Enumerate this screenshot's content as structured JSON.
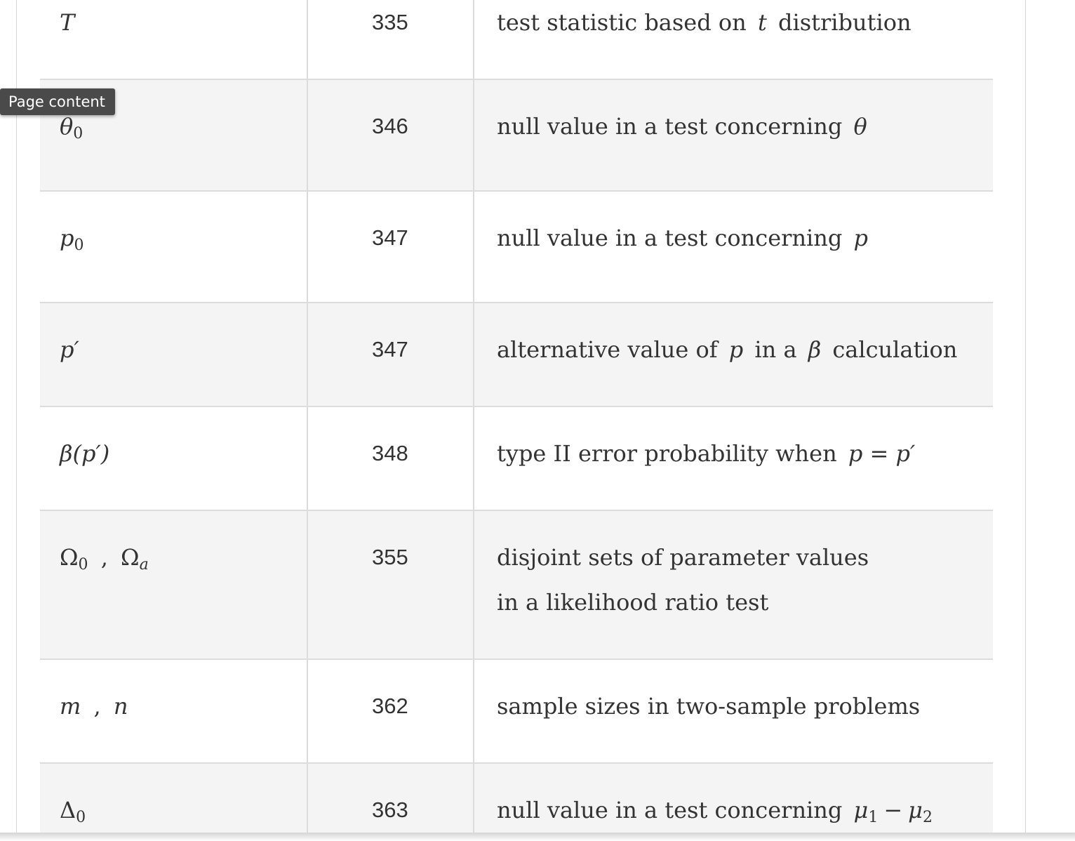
{
  "tooltip": "Page content",
  "rows": [
    {
      "symbol": "T",
      "page": "335",
      "description": [
        "test statistic based on",
        "t",
        "distribution"
      ]
    },
    {
      "symbol": "θ",
      "symbol_sub": "0",
      "page": "346",
      "description": [
        "null value in a test concerning",
        "θ",
        ""
      ]
    },
    {
      "symbol": "p",
      "symbol_sub": "0",
      "page": "347",
      "description": [
        "null value in a test concerning",
        "p",
        ""
      ]
    },
    {
      "symbol": "p′",
      "page": "347",
      "description": [
        "alternative value of",
        "p",
        "in a",
        "β",
        "calculation"
      ]
    },
    {
      "symbol": "β(p′)",
      "page": "348",
      "description": [
        "type II error probability when",
        "p = p′",
        ""
      ]
    },
    {
      "symbol": "Ω",
      "symbol_sub": "0",
      "symbol_sep": ",",
      "symbol2": "Ω",
      "symbol2_sub": "a",
      "page": "355",
      "description": [
        "disjoint sets of parameter values in a likelihood ratio test"
      ]
    },
    {
      "symbol": "m",
      "symbol_sep": ",",
      "symbol2": "n",
      "page": "362",
      "description": [
        "sample sizes in two-sample problems"
      ]
    },
    {
      "symbol": "Δ",
      "symbol_sub": "0",
      "page": "363",
      "description": [
        "null value in a test concerning",
        "μ",
        "1",
        "−",
        "μ",
        "2"
      ]
    }
  ]
}
